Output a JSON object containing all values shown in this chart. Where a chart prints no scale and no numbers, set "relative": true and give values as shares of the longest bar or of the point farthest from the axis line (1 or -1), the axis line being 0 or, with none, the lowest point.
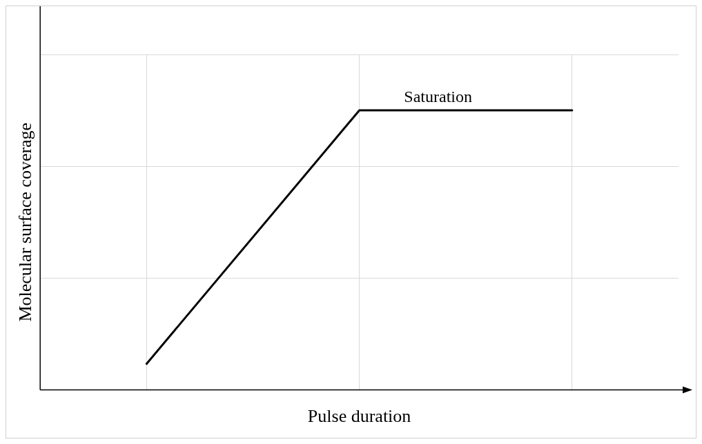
{
  "chart_data": {
    "type": "line",
    "xlabel": "Pulse duration",
    "ylabel": "Molecular surface coverage",
    "relative": true,
    "categories": [
      null,
      null,
      null
    ],
    "series": [
      {
        "color": "#000000",
        "values": [
          0.093,
          1,
          1
        ]
      }
    ],
    "grid": true,
    "legend": false,
    "marker": "none",
    "line_style": "solid",
    "annotations": [
      "Saturation"
    ]
  }
}
